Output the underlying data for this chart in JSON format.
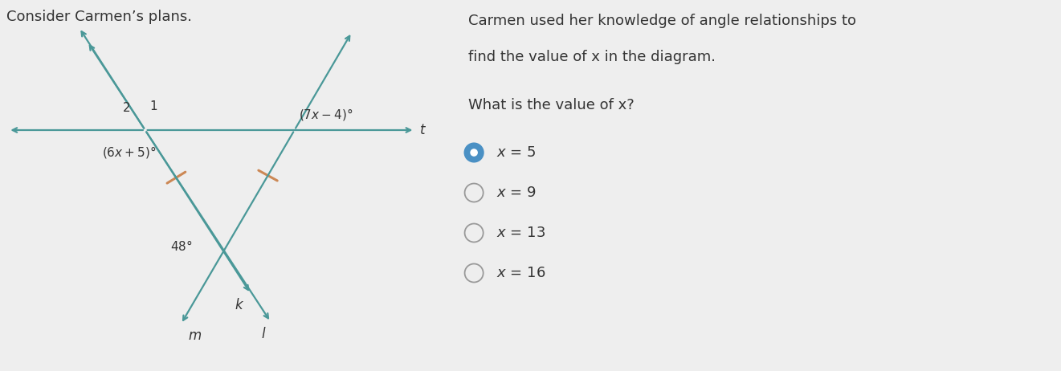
{
  "bg_color": "#eeeeee",
  "title_left": "Consider Carmen’s plans.",
  "title_right_line1": "Carmen used her knowledge of angle relationships to",
  "title_right_line2": "find the value of x in the diagram.",
  "question": "What is the value of x?",
  "choices": [
    "x = 5",
    "x = 9",
    "x = 13",
    "x = 16"
  ],
  "selected_index": 0,
  "teal_color": "#4a9898",
  "orange_color": "#cc8855",
  "radio_selected_color": "#4a90c4",
  "radio_unselected_color": "#999999",
  "text_color": "#333333",
  "diagram_lw": 1.6
}
